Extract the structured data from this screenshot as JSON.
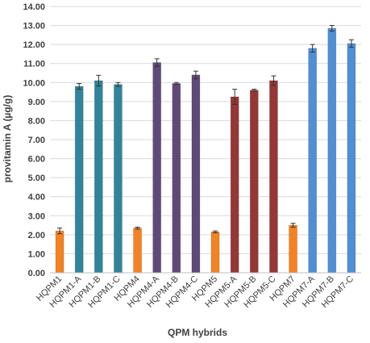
{
  "chart_data": {
    "type": "bar",
    "title": "",
    "xlabel": "QPM hybrids",
    "ylabel": "provitamin A (µg/g)",
    "ylim": [
      0,
      14
    ],
    "yticks": [
      "0.00",
      "1.00",
      "2.00",
      "3.00",
      "4.00",
      "5.00",
      "6.00",
      "7.00",
      "8.00",
      "9.00",
      "10.00",
      "11.00",
      "12.00",
      "13.00",
      "14.00"
    ],
    "grid": "horizontal",
    "categories": [
      "HQPM1",
      "HQPM1-A",
      "HQPM1-B",
      "HQPM1-C",
      "HQPM4",
      "HQPM4-A",
      "HQPM4-B",
      "HQPM4-C",
      "HQPM5",
      "HQPM5-A",
      "HQPM5-B",
      "HQPM5-C",
      "HQPM7",
      "HQPM7-A",
      "HQPM7-B",
      "HQPM7-C"
    ],
    "values": [
      2.2,
      9.8,
      10.1,
      9.9,
      2.35,
      11.05,
      9.95,
      10.4,
      2.15,
      9.25,
      9.6,
      10.1,
      2.5,
      11.8,
      12.85,
      12.05
    ],
    "errors": [
      0.15,
      0.15,
      0.28,
      0.1,
      0.05,
      0.2,
      0.05,
      0.2,
      0.05,
      0.4,
      0.05,
      0.25,
      0.1,
      0.2,
      0.15,
      0.2
    ],
    "colors": [
      "#f58220",
      "#31849b",
      "#31849b",
      "#31849b",
      "#f58220",
      "#60497a",
      "#60497a",
      "#60497a",
      "#f58220",
      "#953735",
      "#953735",
      "#953735",
      "#f58220",
      "#4f8fd6",
      "#4f8fd6",
      "#4f8fd6"
    ]
  }
}
